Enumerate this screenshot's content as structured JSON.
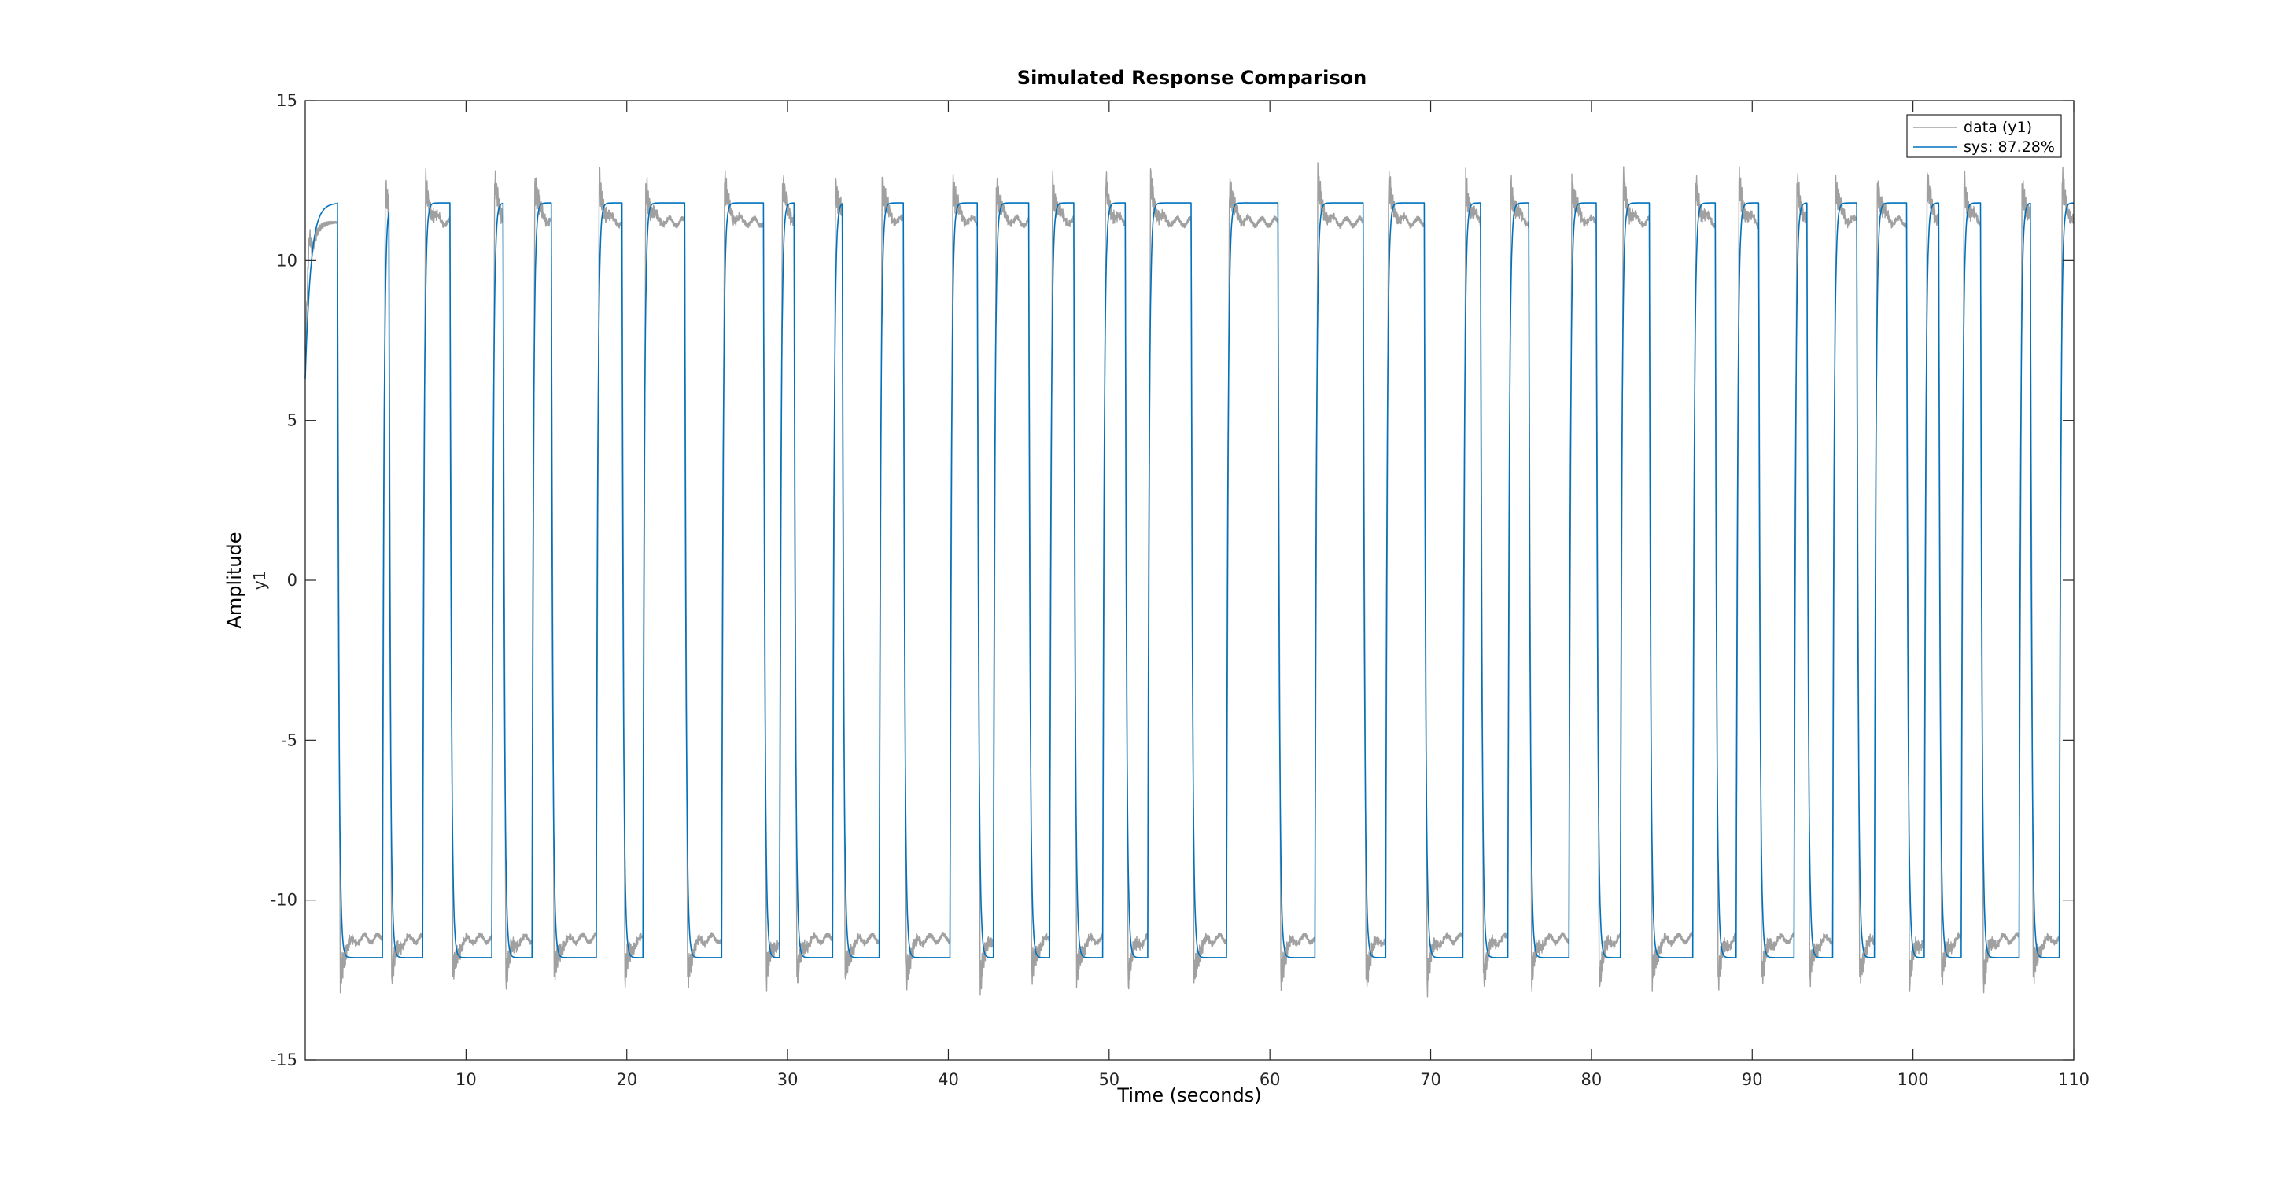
{
  "chart_data": {
    "type": "line",
    "title": "Simulated Response Comparison",
    "xlabel": "Time (seconds)",
    "ylabel": "Amplitude",
    "ylabel_sub": "y1",
    "xlim": [
      0,
      110
    ],
    "ylim": [
      -15,
      15
    ],
    "xticks": [
      10,
      20,
      30,
      40,
      50,
      60,
      70,
      80,
      90,
      100,
      110
    ],
    "yticks": [
      -15,
      -10,
      -5,
      0,
      5,
      10,
      15
    ],
    "grid": false,
    "legend_position": "top-right",
    "switch_times": [
      2.0,
      4.8,
      5.2,
      7.3,
      9.0,
      11.6,
      12.3,
      14.1,
      15.3,
      18.1,
      19.7,
      21.0,
      23.6,
      25.9,
      28.5,
      29.5,
      30.4,
      32.8,
      33.4,
      35.7,
      37.2,
      40.1,
      41.8,
      42.8,
      45.0,
      46.3,
      47.8,
      49.6,
      51.0,
      52.4,
      55.1,
      57.3,
      60.5,
      62.8,
      65.8,
      67.2,
      69.6,
      72.0,
      73.1,
      74.8,
      76.1,
      78.6,
      80.3,
      81.8,
      83.6,
      86.3,
      87.7,
      89.0,
      90.4,
      92.6,
      93.4,
      95.0,
      96.5,
      97.6,
      99.6,
      100.7,
      101.6,
      103.0,
      104.2,
      106.6,
      107.3,
      109.1
    ],
    "series": [
      {
        "name": "data (y1)",
        "color": "#a0a0a0",
        "style": "noisy-overshoot",
        "level": 11.2,
        "overshoot": 12.4
      },
      {
        "name": "sys: 87.28%",
        "color": "#0072bd",
        "style": "first-order-step",
        "level": 11.8
      }
    ]
  }
}
